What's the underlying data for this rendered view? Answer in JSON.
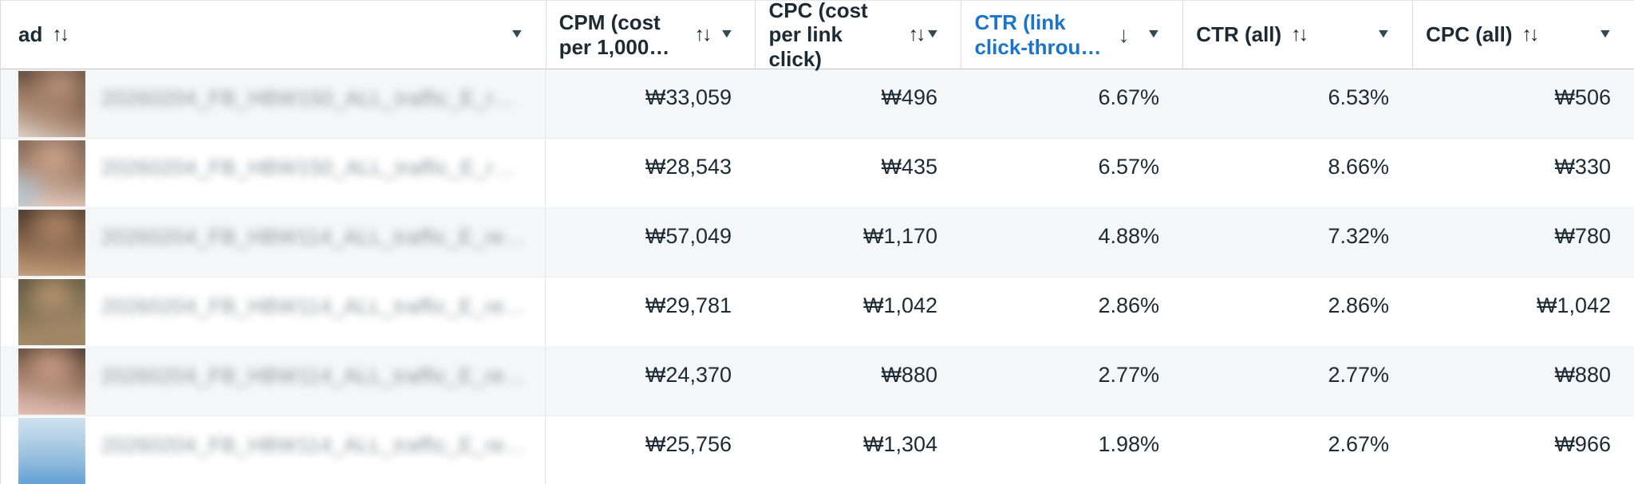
{
  "table": {
    "columns": {
      "ad": {
        "label": "ad",
        "sort": "↑↓",
        "caret": "▼"
      },
      "cpm": {
        "label": "CPM (cost per 1,000…",
        "sort": "↑↓",
        "caret": "▼"
      },
      "cpc": {
        "label": "CPC (cost per link click)",
        "sort": "↑↓",
        "caret": "▼"
      },
      "ctr_link": {
        "label": "CTR (link click-throu…",
        "sort": "↓",
        "caret": "▼",
        "sorted": "descending"
      },
      "ctr_all": {
        "label": "CTR (all)",
        "sort": "↑↓",
        "caret": "▼"
      },
      "cpc_all": {
        "label": "CPC (all)",
        "sort": "↑↓",
        "caret": "▼"
      }
    },
    "rows": [
      {
        "name": "20260204_FB_HBW150_ALL_traffic_E_r…",
        "cpm": "₩33,059",
        "cpc": "₩496",
        "ctr_link": "6.67%",
        "ctr_all": "6.53%",
        "cpc_all": "₩506"
      },
      {
        "name": "20260204_FB_HBW150_ALL_traffic_E_r…",
        "cpm": "₩28,543",
        "cpc": "₩435",
        "ctr_link": "6.57%",
        "ctr_all": "8.66%",
        "cpc_all": "₩330"
      },
      {
        "name": "20260204_FB_HBW114_ALL_traffic_E_re…",
        "cpm": "₩57,049",
        "cpc": "₩1,170",
        "ctr_link": "4.88%",
        "ctr_all": "7.32%",
        "cpc_all": "₩780"
      },
      {
        "name": "20260204_FB_HBW114_ALL_traffic_E_re…",
        "cpm": "₩29,781",
        "cpc": "₩1,042",
        "ctr_link": "2.86%",
        "ctr_all": "2.86%",
        "cpc_all": "₩1,042"
      },
      {
        "name": "20260204_FB_HBW114_ALL_traffic_E_re…",
        "cpm": "₩24,370",
        "cpc": "₩880",
        "ctr_link": "2.77%",
        "ctr_all": "2.77%",
        "cpc_all": "₩880"
      },
      {
        "name": "20260204_FB_HBW114_ALL_traffic_E_re…",
        "cpm": "₩25,756",
        "cpc": "₩1,304",
        "ctr_link": "1.98%",
        "ctr_all": "2.67%",
        "cpc_all": "₩966"
      }
    ]
  },
  "colors": {
    "text_primary": "#1c2b33",
    "sorted_column_header": "#1a74c9",
    "row_alt_background": "#f5f6f7",
    "header_border": "#c1c7cd",
    "column_divider": "#dadde1"
  }
}
